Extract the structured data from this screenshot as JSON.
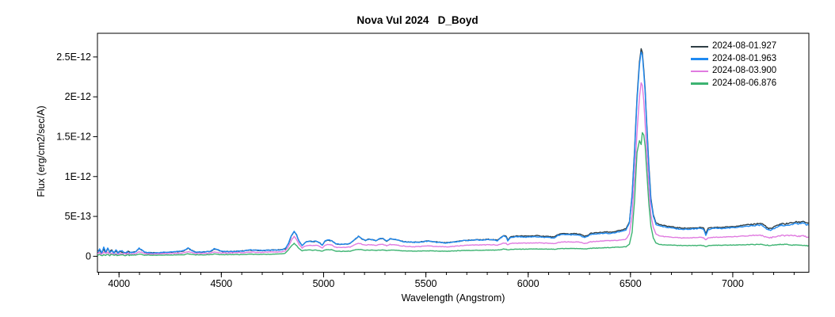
{
  "title": "Nova Vul 2024   D_Boyd",
  "chart_data": {
    "type": "line",
    "title": "Nova Vul 2024   D_Boyd",
    "xlabel": "Wavelength (Angstrom)",
    "ylabel": "Flux (erg/cm2/sec/A)",
    "grid": false,
    "legend_position": "top-right-inside",
    "xlim": [
      3894.5,
      7372
    ],
    "ylim_1e13": [
      -2,
      27.97
    ],
    "x_major_ticks": [
      4000,
      4500,
      5000,
      5500,
      6000,
      6500,
      7000
    ],
    "x_minor_step": 100,
    "y_ticks": [
      {
        "v": 0,
        "label": "0"
      },
      {
        "v": 5,
        "label": "5E-13"
      },
      {
        "v": 10,
        "label": "1E-12"
      },
      {
        "v": 15,
        "label": "1.5E-12"
      },
      {
        "v": 20,
        "label": "2E-12"
      },
      {
        "v": 25,
        "label": "2.5E-12"
      }
    ],
    "flux_unit_note": "flux values are in units of 1E-13 erg/cm2/sec/A",
    "noise_regions": [
      {
        "from": 3894,
        "to": 4060,
        "mult": 2.6
      },
      {
        "from": 7090,
        "to": 7372,
        "mult": 1.7
      }
    ],
    "wavelengths": [
      3895,
      3905,
      3915,
      3925,
      3935,
      3945,
      3955,
      3965,
      3975,
      3985,
      3995,
      4010,
      4025,
      4040,
      4060,
      4080,
      4098,
      4110,
      4125,
      4145,
      4170,
      4200,
      4230,
      4260,
      4290,
      4315,
      4338,
      4352,
      4370,
      4395,
      4420,
      4445,
      4465,
      4480,
      4500,
      4550,
      4600,
      4645,
      4690,
      4740,
      4790,
      4812,
      4828,
      4842,
      4856,
      4868,
      4880,
      4895,
      4912,
      4928,
      4945,
      4962,
      4978,
      4994,
      5008,
      5022,
      5040,
      5060,
      5080,
      5105,
      5130,
      5152,
      5170,
      5188,
      5205,
      5222,
      5238,
      5255,
      5272,
      5290,
      5308,
      5325,
      5345,
      5365,
      5390,
      5415,
      5440,
      5465,
      5490,
      5515,
      5540,
      5565,
      5595,
      5625,
      5655,
      5685,
      5715,
      5745,
      5775,
      5805,
      5830,
      5850,
      5866,
      5880,
      5892,
      5900,
      5915,
      5935,
      5960,
      5985,
      6010,
      6040,
      6070,
      6100,
      6128,
      6145,
      6160,
      6180,
      6205,
      6230,
      6255,
      6275,
      6290,
      6305,
      6330,
      6355,
      6380,
      6405,
      6430,
      6455,
      6478,
      6495,
      6508,
      6520,
      6532,
      6544,
      6552,
      6558,
      6565,
      6572,
      6580,
      6590,
      6600,
      6612,
      6625,
      6640,
      6655,
      6675,
      6700,
      6725,
      6750,
      6775,
      6800,
      6825,
      6845,
      6858,
      6868,
      6880,
      6895,
      6915,
      6940,
      6965,
      6990,
      7015,
      7040,
      7065,
      7090,
      7115,
      7140,
      7160,
      7175,
      7190,
      7205,
      7222,
      7240,
      7258,
      7275,
      7292,
      7310,
      7328,
      7345,
      7360,
      7370
    ],
    "series": [
      {
        "name": "2024-08-01.927",
        "color": "#2f3e45",
        "noise_1e13": 0.05,
        "flux_1e13": [
          0.45,
          0.8,
          0.35,
          0.95,
          0.45,
          0.9,
          0.5,
          0.72,
          0.4,
          0.68,
          0.45,
          0.6,
          0.5,
          0.52,
          0.52,
          0.52,
          0.95,
          0.8,
          0.52,
          0.47,
          0.44,
          0.46,
          0.5,
          0.55,
          0.6,
          0.68,
          1.0,
          0.78,
          0.55,
          0.52,
          0.55,
          0.6,
          0.9,
          0.82,
          0.6,
          0.6,
          0.65,
          0.78,
          0.72,
          0.77,
          0.8,
          0.93,
          1.55,
          2.55,
          3.1,
          2.65,
          1.88,
          1.35,
          1.78,
          1.88,
          1.83,
          1.88,
          1.73,
          1.4,
          1.92,
          2.02,
          1.93,
          1.55,
          1.5,
          1.52,
          1.6,
          2.08,
          2.48,
          2.18,
          2.0,
          2.13,
          2.1,
          1.95,
          2.18,
          2.22,
          1.9,
          2.18,
          2.13,
          2.0,
          1.85,
          1.78,
          1.76,
          1.78,
          1.85,
          1.9,
          1.8,
          1.76,
          1.67,
          1.77,
          1.87,
          1.97,
          2.02,
          2.07,
          2.05,
          2.13,
          2.08,
          2.0,
          2.38,
          2.62,
          2.52,
          2.05,
          2.45,
          2.52,
          2.55,
          2.52,
          2.55,
          2.58,
          2.53,
          2.48,
          2.4,
          2.72,
          2.82,
          2.85,
          2.8,
          2.85,
          2.75,
          2.5,
          2.6,
          2.88,
          2.93,
          2.98,
          3.05,
          3.0,
          3.15,
          3.25,
          3.45,
          4.35,
          7.7,
          13.3,
          19.9,
          24.4,
          26.0,
          25.6,
          23.4,
          20.9,
          16.4,
          11.3,
          7.3,
          5.2,
          4.2,
          4.0,
          3.9,
          3.8,
          3.7,
          3.6,
          3.55,
          3.52,
          3.55,
          3.58,
          3.62,
          3.5,
          2.85,
          3.5,
          3.58,
          3.62,
          3.62,
          3.66,
          3.72,
          3.78,
          3.85,
          3.92,
          4.0,
          4.08,
          4.12,
          3.8,
          3.45,
          3.5,
          3.7,
          3.95,
          4.1,
          4.05,
          4.15,
          4.2,
          4.3,
          4.28,
          4.42,
          4.2,
          4.15
        ]
      },
      {
        "name": "2024-08-01.963",
        "color": "#1f8af2",
        "noise_1e13": 0.05,
        "flux_1e13": [
          0.5,
          0.9,
          0.3,
          1.1,
          0.4,
          1.0,
          0.45,
          0.8,
          0.35,
          0.75,
          0.4,
          0.65,
          0.45,
          0.55,
          0.5,
          0.55,
          1.0,
          0.85,
          0.5,
          0.45,
          0.42,
          0.45,
          0.5,
          0.55,
          0.6,
          0.7,
          1.05,
          0.8,
          0.55,
          0.5,
          0.55,
          0.6,
          0.95,
          0.85,
          0.6,
          0.6,
          0.65,
          0.8,
          0.72,
          0.78,
          0.8,
          0.95,
          1.6,
          2.6,
          3.15,
          2.7,
          1.9,
          1.35,
          1.8,
          1.9,
          1.85,
          1.9,
          1.75,
          1.4,
          1.95,
          2.05,
          1.95,
          1.55,
          1.5,
          1.52,
          1.6,
          2.1,
          2.5,
          2.2,
          2.0,
          2.15,
          2.1,
          1.95,
          2.2,
          2.25,
          1.9,
          2.2,
          2.15,
          2.0,
          1.85,
          1.78,
          1.75,
          1.78,
          1.85,
          1.9,
          1.8,
          1.75,
          1.65,
          1.75,
          1.85,
          1.95,
          2.0,
          2.05,
          2.02,
          2.1,
          2.05,
          1.95,
          2.3,
          2.55,
          2.45,
          1.95,
          2.35,
          2.42,
          2.45,
          2.4,
          2.42,
          2.45,
          2.4,
          2.35,
          2.25,
          2.6,
          2.7,
          2.72,
          2.68,
          2.72,
          2.6,
          2.35,
          2.45,
          2.75,
          2.8,
          2.85,
          2.9,
          2.85,
          3.0,
          3.1,
          3.3,
          4.2,
          7.5,
          13.0,
          19.5,
          24.0,
          25.6,
          25.2,
          23.0,
          20.5,
          16.0,
          11.0,
          7.0,
          5.0,
          4.0,
          3.85,
          3.75,
          3.65,
          3.55,
          3.45,
          3.4,
          3.4,
          3.42,
          3.45,
          3.5,
          3.35,
          2.65,
          3.35,
          3.45,
          3.5,
          3.48,
          3.52,
          3.58,
          3.62,
          3.68,
          3.75,
          3.82,
          3.9,
          3.95,
          3.6,
          3.25,
          3.3,
          3.5,
          3.75,
          3.9,
          3.85,
          3.95,
          4.0,
          4.1,
          4.05,
          4.2,
          3.95,
          3.9
        ]
      },
      {
        "name": "2024-08-03.900",
        "color": "#e07be0",
        "noise_1e13": 0.04,
        "flux_1e13": [
          0.3,
          0.4,
          0.25,
          0.5,
          0.3,
          0.45,
          0.3,
          0.4,
          0.28,
          0.38,
          0.3,
          0.35,
          0.3,
          0.32,
          0.3,
          0.33,
          0.55,
          0.5,
          0.32,
          0.3,
          0.3,
          0.32,
          0.33,
          0.35,
          0.38,
          0.42,
          0.6,
          0.5,
          0.38,
          0.35,
          0.36,
          0.4,
          0.55,
          0.5,
          0.4,
          0.42,
          0.45,
          0.52,
          0.48,
          0.52,
          0.55,
          0.65,
          1.2,
          2.0,
          2.5,
          2.1,
          1.45,
          1.05,
          1.3,
          1.38,
          1.35,
          1.38,
          1.28,
          1.05,
          1.42,
          1.5,
          1.42,
          1.12,
          1.08,
          1.1,
          1.15,
          1.45,
          1.65,
          1.5,
          1.4,
          1.45,
          1.42,
          1.35,
          1.48,
          1.5,
          1.32,
          1.48,
          1.45,
          1.38,
          1.28,
          1.22,
          1.2,
          1.22,
          1.26,
          1.3,
          1.25,
          1.22,
          1.18,
          1.24,
          1.3,
          1.36,
          1.4,
          1.42,
          1.42,
          1.45,
          1.44,
          1.4,
          1.55,
          1.68,
          1.62,
          1.42,
          1.6,
          1.64,
          1.66,
          1.65,
          1.66,
          1.68,
          1.66,
          1.64,
          1.6,
          1.72,
          1.78,
          1.8,
          1.78,
          1.8,
          1.76,
          1.6,
          1.68,
          1.82,
          1.86,
          1.9,
          1.95,
          1.95,
          2.0,
          2.05,
          2.15,
          2.8,
          5.2,
          10.0,
          15.5,
          20.0,
          21.8,
          21.4,
          19.5,
          16.5,
          13.0,
          8.5,
          5.2,
          3.6,
          2.8,
          2.6,
          2.5,
          2.45,
          2.4,
          2.35,
          2.3,
          2.3,
          2.32,
          2.35,
          2.38,
          2.3,
          2.05,
          2.3,
          2.36,
          2.4,
          2.4,
          2.42,
          2.45,
          2.48,
          2.52,
          2.55,
          2.6,
          2.62,
          2.6,
          2.45,
          2.3,
          2.35,
          2.45,
          2.55,
          2.6,
          2.58,
          2.62,
          2.6,
          2.55,
          2.5,
          2.55,
          2.45,
          2.4
        ]
      },
      {
        "name": "2024-08-06.876",
        "color": "#3cb371",
        "noise_1e13": 0.03,
        "flux_1e13": [
          0.15,
          0.2,
          0.1,
          0.2,
          0.15,
          0.2,
          0.1,
          0.2,
          0.12,
          0.18,
          0.12,
          0.18,
          0.14,
          0.16,
          0.15,
          0.16,
          0.28,
          0.24,
          0.15,
          0.14,
          0.14,
          0.15,
          0.16,
          0.17,
          0.18,
          0.2,
          0.3,
          0.24,
          0.18,
          0.17,
          0.18,
          0.2,
          0.28,
          0.26,
          0.2,
          0.21,
          0.22,
          0.26,
          0.24,
          0.26,
          0.3,
          0.38,
          0.8,
          1.3,
          1.62,
          1.35,
          0.95,
          0.7,
          0.75,
          0.8,
          0.75,
          0.78,
          0.72,
          0.62,
          0.8,
          0.85,
          0.8,
          0.65,
          0.62,
          0.63,
          0.65,
          0.78,
          0.88,
          0.8,
          0.75,
          0.78,
          0.76,
          0.72,
          0.78,
          0.8,
          0.7,
          0.78,
          0.77,
          0.73,
          0.68,
          0.65,
          0.64,
          0.65,
          0.67,
          0.68,
          0.66,
          0.65,
          0.63,
          0.66,
          0.69,
          0.72,
          0.74,
          0.76,
          0.76,
          0.78,
          0.78,
          0.76,
          0.84,
          0.9,
          0.88,
          0.8,
          0.87,
          0.88,
          0.89,
          0.89,
          0.9,
          0.91,
          0.9,
          0.9,
          0.88,
          0.93,
          0.95,
          0.96,
          0.96,
          0.97,
          0.96,
          0.9,
          0.94,
          1.0,
          1.02,
          1.05,
          1.08,
          1.1,
          1.13,
          1.16,
          1.2,
          1.5,
          3.0,
          7.0,
          13.0,
          14.5,
          14.0,
          15.5,
          15.2,
          13.8,
          10.5,
          6.5,
          3.8,
          2.3,
          1.65,
          1.5,
          1.45,
          1.42,
          1.4,
          1.38,
          1.35,
          1.34,
          1.35,
          1.36,
          1.37,
          1.33,
          1.2,
          1.32,
          1.36,
          1.38,
          1.38,
          1.39,
          1.4,
          1.42,
          1.44,
          1.45,
          1.47,
          1.48,
          1.47,
          1.42,
          1.36,
          1.38,
          1.42,
          1.48,
          1.5,
          1.48,
          1.45,
          1.42,
          1.4,
          1.38,
          1.4,
          1.35,
          1.33
        ]
      }
    ]
  }
}
